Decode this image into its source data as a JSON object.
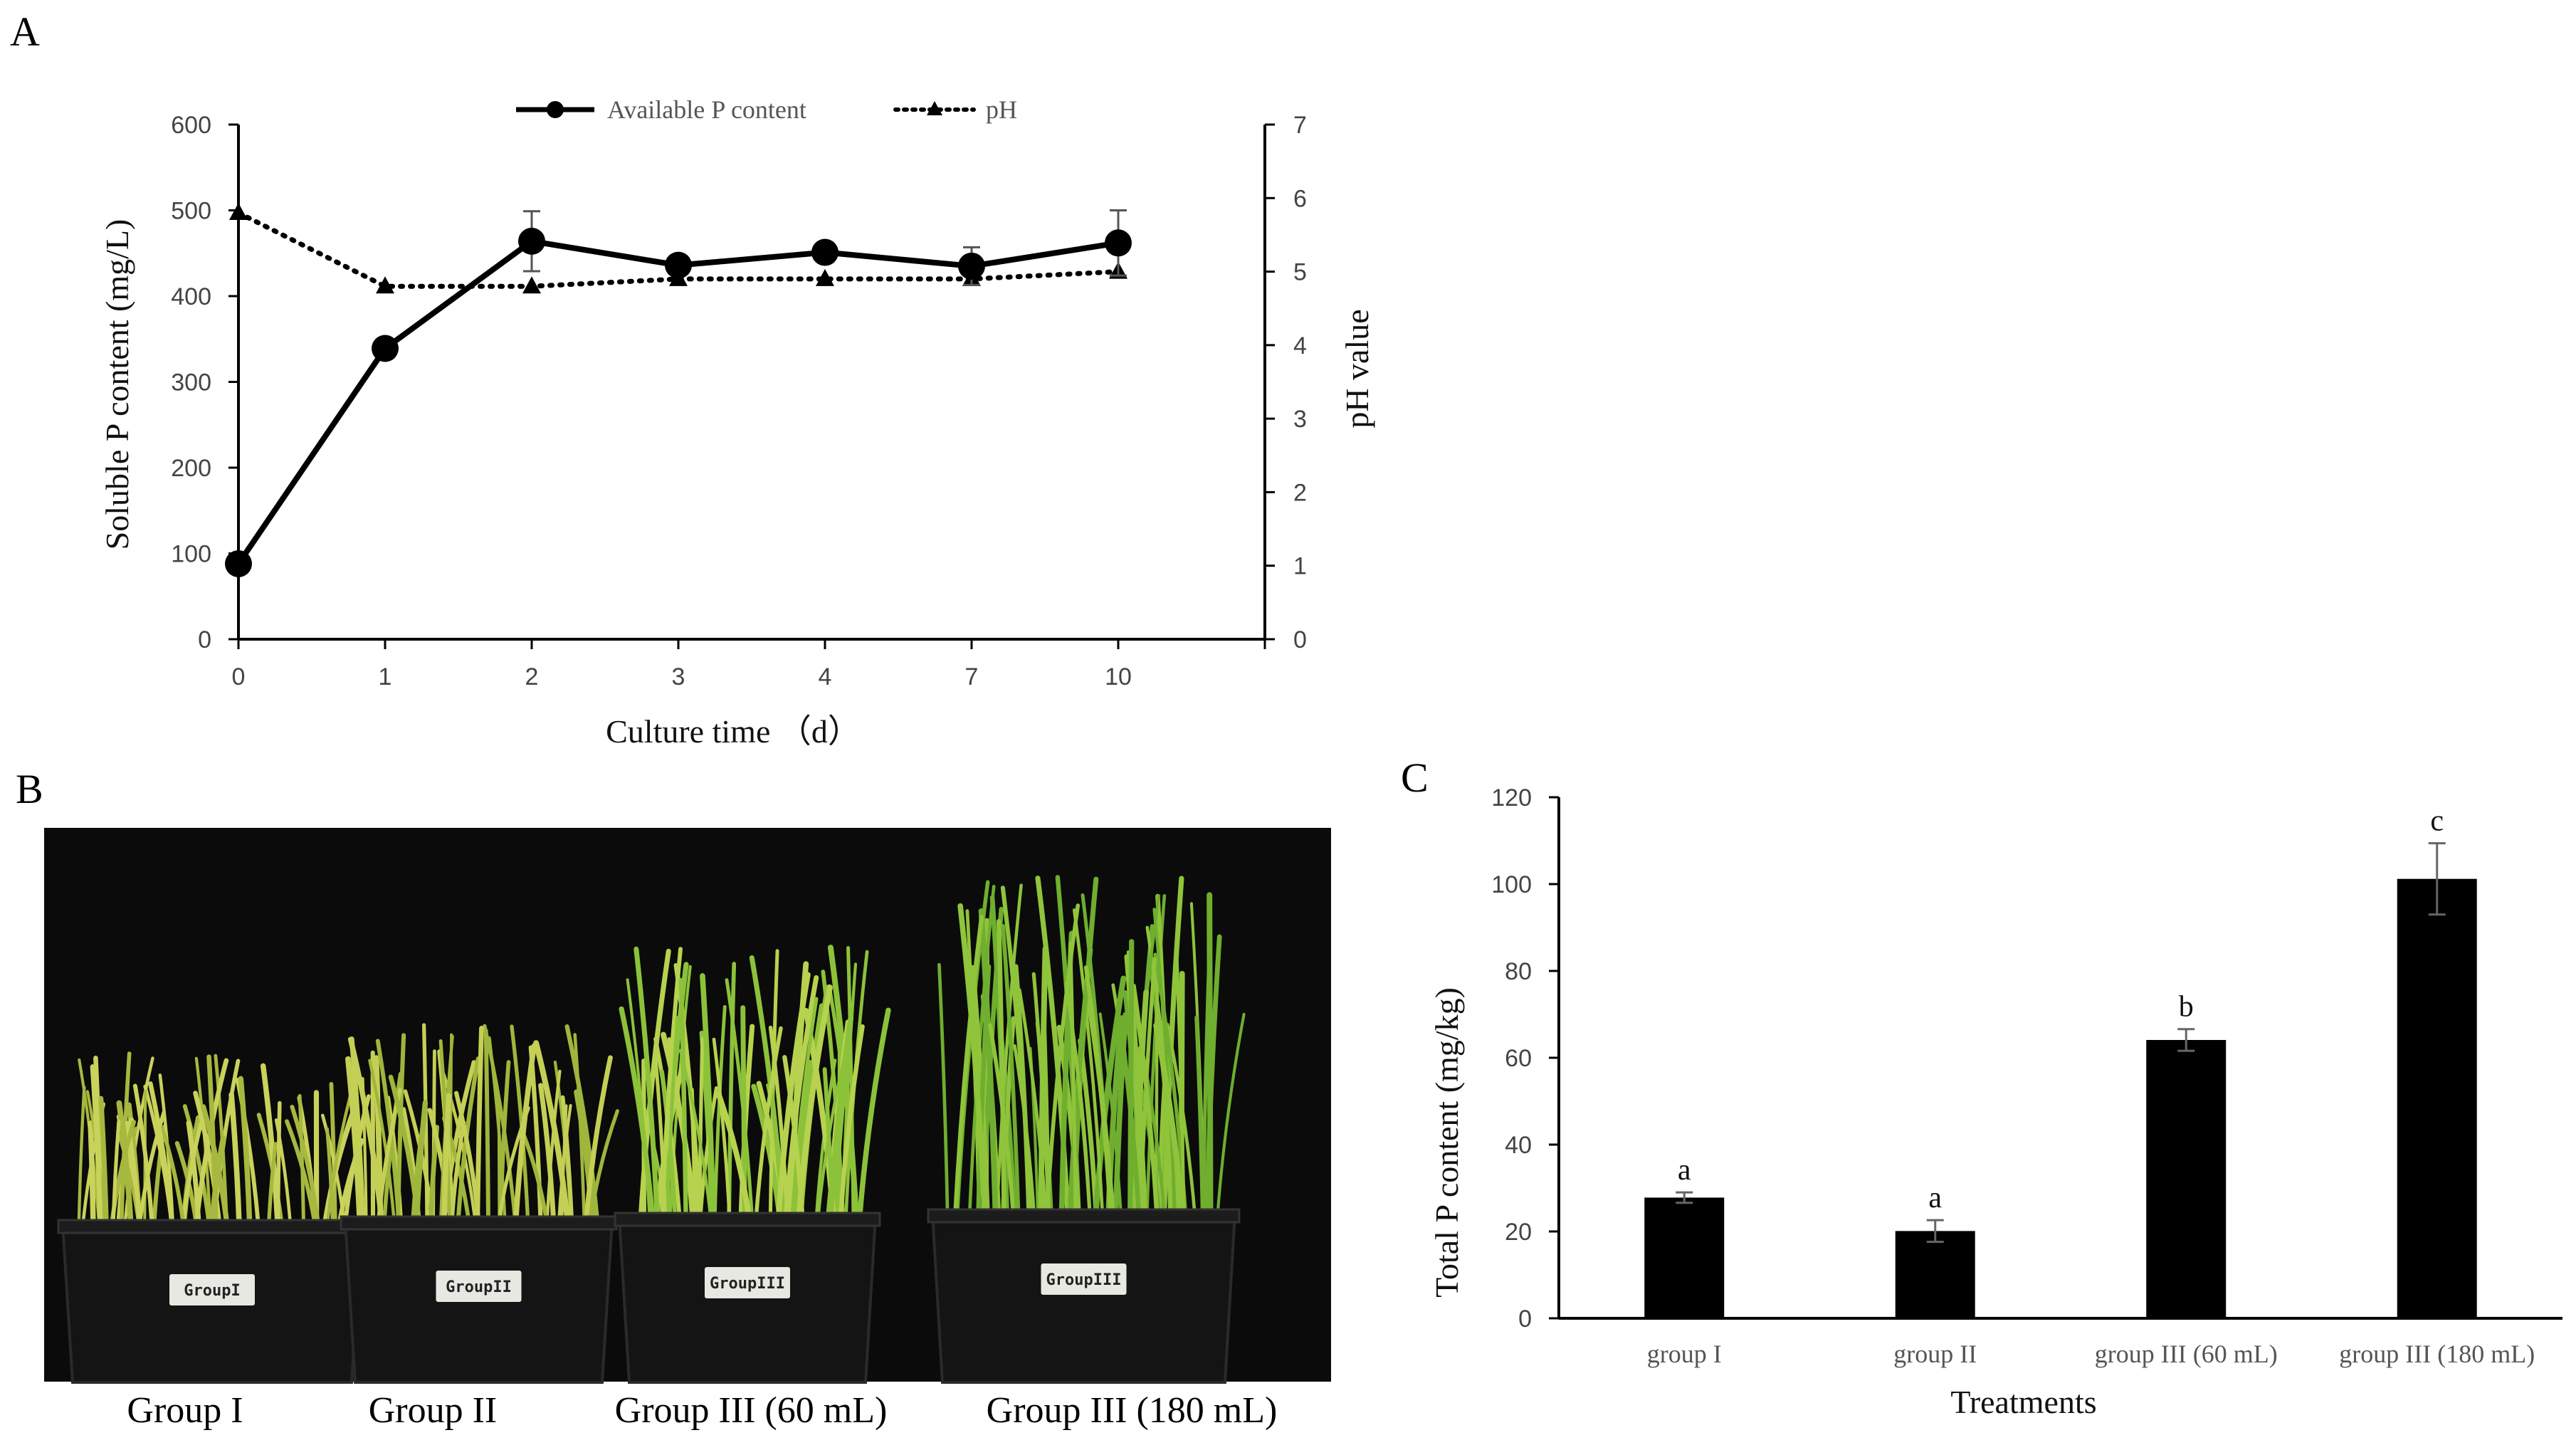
{
  "panels": {
    "a": "A",
    "b": "B",
    "c": "C"
  },
  "colors": {
    "line": "#000000",
    "bar": "#000000",
    "axis": "#000000",
    "photo_bg": "#0b0b0b",
    "leaf_light": "#c9d25a",
    "leaf_green": "#6fae2e",
    "pot": "#121212"
  },
  "chart_data": [
    {
      "id": "A",
      "type": "line",
      "x": [
        "0",
        "1",
        "2",
        "3",
        "4",
        "7",
        "10"
      ],
      "xlabel": "Culture time （d）",
      "ylabel": "Soluble P content (mg/L)",
      "y2label": "pH value",
      "ylim": [
        0,
        600
      ],
      "y2lim": [
        0,
        7
      ],
      "yticks": [
        "0",
        "100",
        "200",
        "300",
        "400",
        "500",
        "600"
      ],
      "y2ticks": [
        "0",
        "1",
        "2",
        "3",
        "4",
        "5",
        "6",
        "7"
      ],
      "legend_position": "top-center",
      "series": [
        {
          "name": "Available P content",
          "axis": "left",
          "style": "solid",
          "marker": "circle",
          "values": [
            88,
            339,
            464,
            436,
            451,
            435,
            462
          ],
          "error": [
            0,
            0,
            35,
            0,
            0,
            22,
            38
          ]
        },
        {
          "name": "pH",
          "axis": "right",
          "style": "dotted",
          "marker": "triangle",
          "values": [
            5.8,
            4.8,
            4.8,
            4.9,
            4.9,
            4.9,
            5.0
          ]
        }
      ]
    },
    {
      "id": "C",
      "type": "bar",
      "categories": [
        "group I",
        "group II",
        "group III (60 mL)",
        "group III (180 mL)"
      ],
      "values": [
        27.8,
        20.1,
        64.1,
        101.2
      ],
      "error": [
        1.2,
        2.5,
        2.5,
        8.2
      ],
      "significance": [
        "a",
        "a",
        "b",
        "c"
      ],
      "xlabel": "Treatments",
      "ylabel": "Total P content (mg/kg)",
      "ylim": [
        0,
        120
      ],
      "yticks": [
        "0",
        "20",
        "40",
        "60",
        "80",
        "100",
        "120"
      ]
    }
  ],
  "photo": {
    "captions": [
      "Group I",
      "Group II",
      "Group III (60 mL)",
      "Group III (180 mL)"
    ],
    "pot_labels": [
      "GroupI",
      "GroupII",
      "GroupIII",
      "GroupIII"
    ]
  }
}
